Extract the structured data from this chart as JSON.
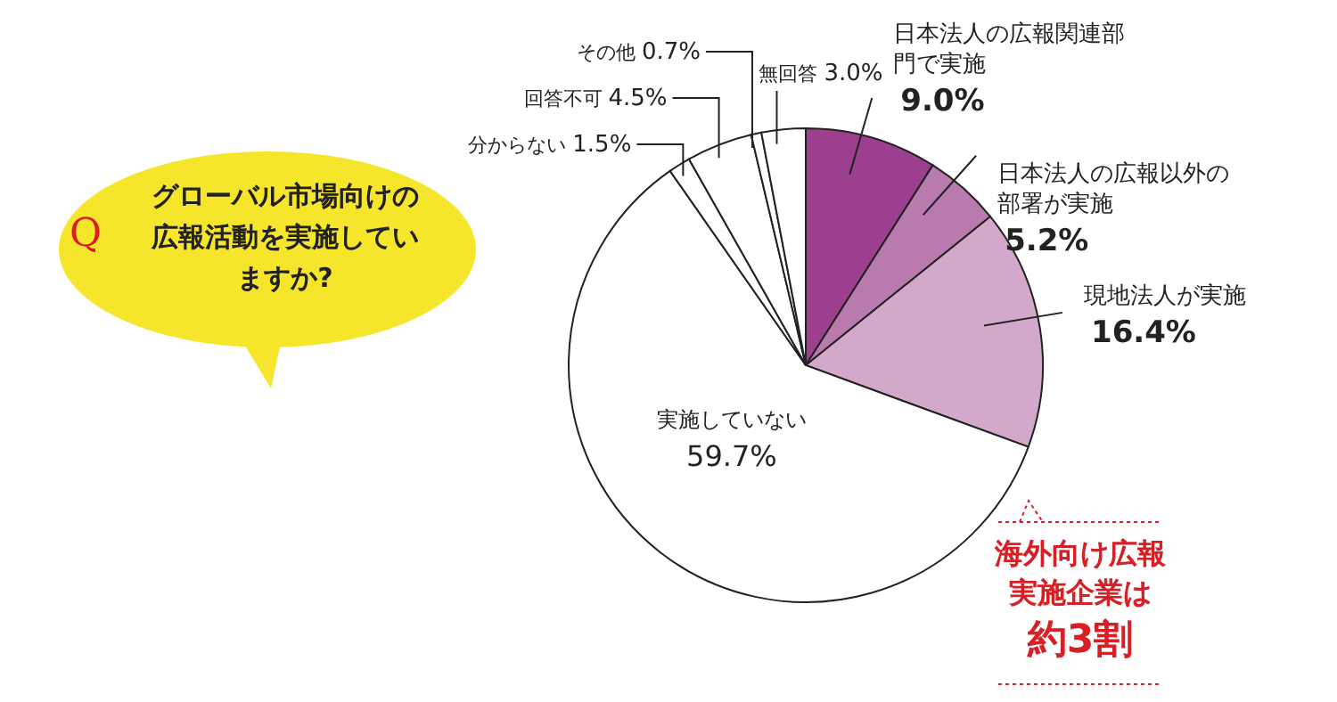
{
  "chart_data": {
    "type": "pie",
    "title": "グローバル市場向けの広報活動を実施していますか?",
    "categories": [
      "日本法人の広報関連部門で実施",
      "日本法人の広報以外の部署が実施",
      "現地法人が実施",
      "実施していない",
      "分からない",
      "回答不可",
      "その他",
      "無回答"
    ],
    "values": [
      9.0,
      5.2,
      16.4,
      59.7,
      1.5,
      4.5,
      0.7,
      3.0
    ],
    "value_labels": [
      "9.0%",
      "5.2%",
      "16.4%",
      "59.7%",
      "1.5%",
      "4.5%",
      "0.7%",
      "3.0%"
    ],
    "colors": [
      "#9b3f8e",
      "#b97aad",
      "#d4a8ca",
      "#ffffff",
      "#ffffff",
      "#ffffff",
      "#ffffff",
      "#ffffff"
    ],
    "annotations": [
      "Q",
      "海外向け広報実施企業は約3割"
    ]
  }
}
